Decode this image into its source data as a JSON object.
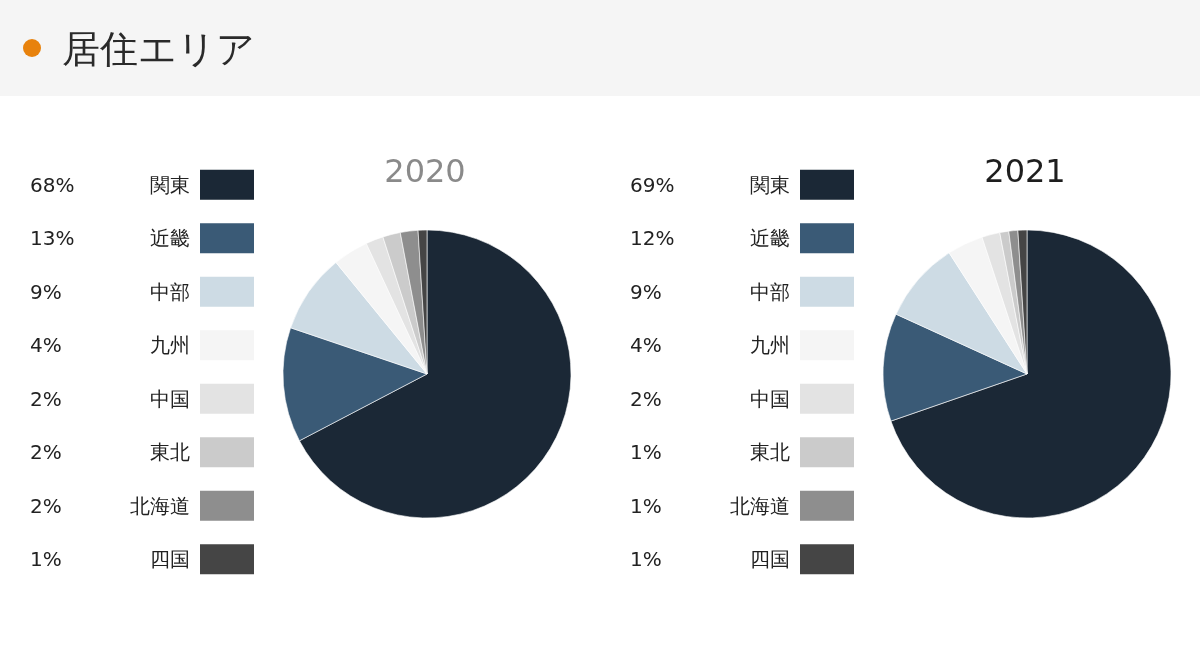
{
  "chart_data": [
    {
      "type": "other",
      "title": "居住エリア"
    },
    {
      "type": "pie",
      "title": "2020",
      "categories": [
        "関東",
        "近畿",
        "中部",
        "九州",
        "中国",
        "東北",
        "北海道",
        "四国"
      ],
      "values": [
        68,
        13,
        9,
        4,
        2,
        2,
        2,
        1
      ],
      "value_labels": [
        "68%",
        "13%",
        "9%",
        "4%",
        "2%",
        "2%",
        "2%",
        "1%"
      ],
      "colors": [
        "#1b2836",
        "#3a5a76",
        "#cddbe4",
        "#f5f5f5",
        "#e3e3e3",
        "#cbcbcb",
        "#8e8e8e",
        "#454545"
      ],
      "legend": "left"
    },
    {
      "type": "pie",
      "title": "2021",
      "categories": [
        "関東",
        "近畿",
        "中部",
        "九州",
        "中国",
        "東北",
        "北海道",
        "四国"
      ],
      "values": [
        69,
        12,
        9,
        4,
        2,
        1,
        1,
        1
      ],
      "value_labels": [
        "69%",
        "12%",
        "9%",
        "4%",
        "2%",
        "1%",
        "1%",
        "1%"
      ],
      "colors": [
        "#1b2836",
        "#3a5a76",
        "#cddbe4",
        "#f5f5f5",
        "#e3e3e3",
        "#cbcbcb",
        "#8e8e8e",
        "#454545"
      ],
      "legend": "left"
    }
  ]
}
